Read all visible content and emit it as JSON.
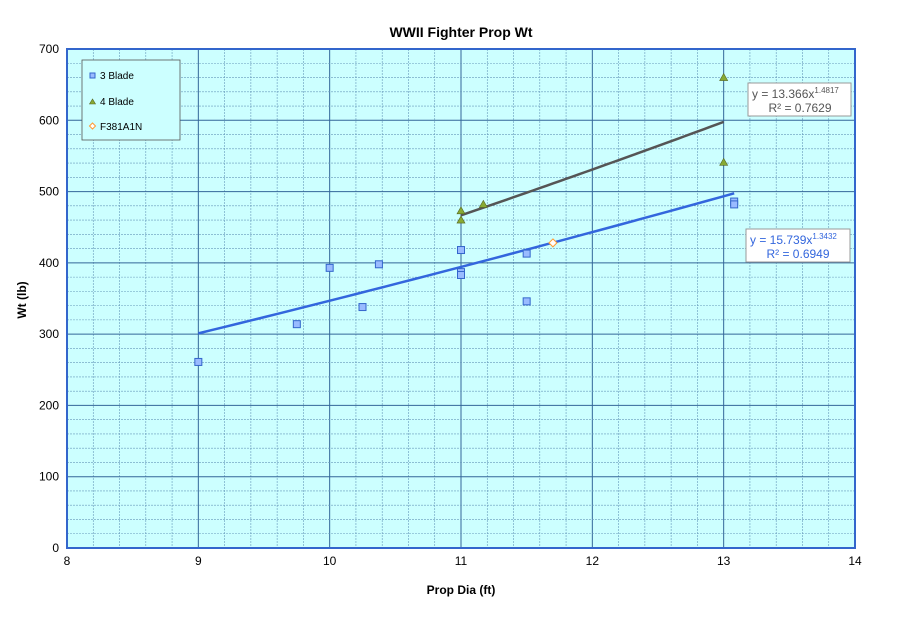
{
  "chart_data": {
    "type": "scatter",
    "title": "WWII Fighter Prop Wt",
    "xlabel": "Prop Dia (ft)",
    "ylabel": "Wt (lb)",
    "xlim": [
      8,
      14
    ],
    "ylim": [
      0,
      700
    ],
    "xticks": [
      "8",
      "9",
      "10",
      "11",
      "12",
      "13",
      "14"
    ],
    "yticks": [
      "0",
      "100",
      "200",
      "300",
      "400",
      "500",
      "600",
      "700"
    ],
    "grid": true,
    "legend_placement": "top-left",
    "colors": {
      "plot_bg": "#ccffff",
      "border": "#3366cc",
      "three_blade": "#99bbff",
      "four_blade": "#88aa33",
      "f381": "#ff9933",
      "trend3": "#3366dd",
      "trend4": "#555555"
    },
    "series": [
      {
        "name": "3 Blade",
        "marker": "square",
        "points": [
          [
            9,
            261
          ],
          [
            9.75,
            314
          ],
          [
            10,
            393
          ],
          [
            10.25,
            338
          ],
          [
            10.375,
            398
          ],
          [
            11,
            418
          ],
          [
            11,
            387
          ],
          [
            11,
            383
          ],
          [
            11.5,
            413
          ],
          [
            11.5,
            346
          ],
          [
            13.08,
            486
          ],
          [
            13.08,
            482
          ]
        ]
      },
      {
        "name": "4 Blade",
        "marker": "triangle",
        "points": [
          [
            11,
            473
          ],
          [
            11,
            460
          ],
          [
            11.17,
            482
          ],
          [
            13,
            660
          ],
          [
            13,
            541
          ]
        ]
      },
      {
        "name": "F381A1N",
        "marker": "diamond",
        "points": [
          [
            11.7,
            428
          ]
        ]
      }
    ],
    "trendlines": [
      {
        "series": "4 Blade",
        "type": "power",
        "a": 13.366,
        "b": 1.4817,
        "range": [
          11,
          13
        ],
        "equation": "y = 13.366x",
        "exponent": "1.4817",
        "r2": "R² = 0.7629"
      },
      {
        "series": "3 Blade",
        "type": "power",
        "a": 15.739,
        "b": 1.3432,
        "range": [
          9,
          13.08
        ],
        "equation": "y = 15.739x",
        "exponent": "1.3432",
        "r2": "R² = 0.6949"
      }
    ]
  }
}
